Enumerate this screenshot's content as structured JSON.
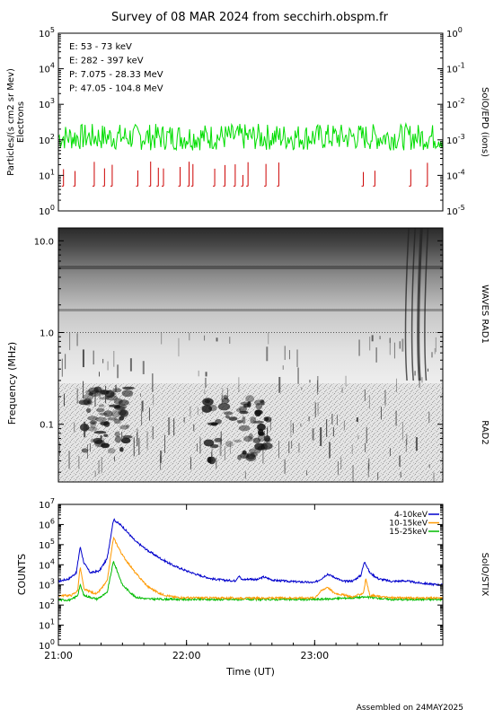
{
  "page": {
    "title": "Survey of 08 MAR 2024 from secchirh.obspm.fr",
    "footer": "Assembled on 24MAY2025"
  },
  "chart_data": [
    {
      "panel": "solo-epd",
      "type": "line",
      "ylabel": "Particles/(s cm2 sr Mev)",
      "ylabel2": "Electrons",
      "y2label": "SolO/EPD (ions)",
      "yscale": "log",
      "ylim": [
        1,
        100000
      ],
      "y2lim": [
        1e-05,
        1
      ],
      "yticks": [
        {
          "v": 1,
          "b": "10",
          "e": "0"
        },
        {
          "v": 10,
          "b": "10",
          "e": "1"
        },
        {
          "v": 100,
          "b": "10",
          "e": "2"
        },
        {
          "v": 1000,
          "b": "10",
          "e": "3"
        },
        {
          "v": 10000,
          "b": "10",
          "e": "4"
        },
        {
          "v": 100000,
          "b": "10",
          "e": "5"
        }
      ],
      "y2ticks": [
        {
          "v": 1e-05,
          "b": "10",
          "e": "-5"
        },
        {
          "v": 0.0001,
          "b": "10",
          "e": "-4"
        },
        {
          "v": 0.001,
          "b": "10",
          "e": "-3"
        },
        {
          "v": 0.01,
          "b": "10",
          "e": "-2"
        },
        {
          "v": 0.1,
          "b": "10",
          "e": "-1"
        },
        {
          "v": 1,
          "b": "10",
          "e": "0"
        }
      ],
      "legend": [
        {
          "label": "E: 53 - 73 keV",
          "color": "#00dd00"
        },
        {
          "label": "E: 282 - 397 keV",
          "color": "#cc0000"
        },
        {
          "label": "P: 7.075 - 28.33 MeV",
          "color": "#000000"
        },
        {
          "label": "P: 47.05 - 104.8 MeV",
          "color": "#0000cc"
        }
      ],
      "series": [
        {
          "name": "E: 53 - 73 keV",
          "color": "#00dd00",
          "typical_value": 120,
          "range": [
            40,
            300
          ]
        },
        {
          "name": "E: 282 - 397 keV",
          "color": "#cc0000",
          "baseline": 5,
          "spike_times_h": [
            21.04,
            21.13,
            21.28,
            21.36,
            21.42,
            21.62,
            21.72,
            21.78,
            21.82,
            21.95,
            22.02,
            22.05,
            22.22,
            22.3,
            22.38,
            22.44,
            22.48,
            22.62,
            22.72,
            23.38,
            23.47,
            23.75,
            23.88
          ]
        }
      ]
    },
    {
      "panel": "waves-rad",
      "type": "heatmap",
      "ylabel": "Frequency (MHz)",
      "y2label_top": "WAVES RAD1",
      "y2label_bottom": "RAD2",
      "yscale": "log",
      "ylim": [
        0.0235,
        13.8
      ],
      "yticks": [
        {
          "v": 0.1,
          "label": "0.1"
        },
        {
          "v": 1.0,
          "label": "1.0"
        },
        {
          "v": 10.0,
          "label": "10.0"
        }
      ],
      "features": [
        {
          "kind": "burst",
          "t_start_h": 21.2,
          "t_end_h": 21.55,
          "f_low_mhz": 0.05,
          "f_high_mhz": 0.25
        },
        {
          "kind": "burst",
          "t_start_h": 22.15,
          "t_end_h": 22.65,
          "f_low_mhz": 0.04,
          "f_high_mhz": 0.2
        },
        {
          "kind": "type-III",
          "t_start_h": 23.72,
          "t_end_h": 23.92,
          "f_low_mhz": 0.3,
          "f_high_mhz": 13.8
        }
      ]
    },
    {
      "panel": "solo-stix",
      "type": "line",
      "ylabel": "COUNTS",
      "y2label": "SolO/STIX",
      "yscale": "log",
      "ylim": [
        1,
        10000000
      ],
      "yticks": [
        {
          "v": 1,
          "b": "10",
          "e": "0"
        },
        {
          "v": 10,
          "b": "10",
          "e": "1"
        },
        {
          "v": 100,
          "b": "10",
          "e": "2"
        },
        {
          "v": 1000,
          "b": "10",
          "e": "3"
        },
        {
          "v": 10000,
          "b": "10",
          "e": "4"
        },
        {
          "v": 100000,
          "b": "10",
          "e": "5"
        },
        {
          "v": 1000000,
          "b": "10",
          "e": "6"
        },
        {
          "v": 10000000,
          "b": "10",
          "e": "7"
        }
      ],
      "xlabel": "Time (UT)",
      "xlim_h": [
        21.0,
        24.0
      ],
      "xticks": [
        {
          "v": 21.0,
          "label": "21:00"
        },
        {
          "v": 22.0,
          "label": "22:00"
        },
        {
          "v": 23.0,
          "label": "23:00"
        }
      ],
      "legend": [
        {
          "label": "4-10keV",
          "color": "#0000cc"
        },
        {
          "label": "10-15keV",
          "color": "#ff9900"
        },
        {
          "label": "15-25keV",
          "color": "#00bb00"
        }
      ],
      "series": [
        {
          "name": "4-10keV",
          "color": "#0000cc",
          "points": [
            [
              21.0,
              1500
            ],
            [
              21.08,
              2000
            ],
            [
              21.14,
              4000
            ],
            [
              21.17,
              80000
            ],
            [
              21.2,
              12000
            ],
            [
              21.25,
              4000
            ],
            [
              21.32,
              5000
            ],
            [
              21.38,
              20000
            ],
            [
              21.43,
              1800000
            ],
            [
              21.5,
              800000
            ],
            [
              21.6,
              150000
            ],
            [
              21.7,
              50000
            ],
            [
              21.8,
              20000
            ],
            [
              21.9,
              9000
            ],
            [
              22.0,
              5000
            ],
            [
              22.1,
              3000
            ],
            [
              22.2,
              2000
            ],
            [
              22.3,
              1700
            ],
            [
              22.38,
              1600
            ],
            [
              22.41,
              3000
            ],
            [
              22.43,
              1800
            ],
            [
              22.5,
              2000
            ],
            [
              22.55,
              1800
            ],
            [
              22.6,
              2500
            ],
            [
              22.68,
              1700
            ],
            [
              22.8,
              1500
            ],
            [
              22.9,
              1400
            ],
            [
              23.0,
              1300
            ],
            [
              23.05,
              2000
            ],
            [
              23.1,
              3500
            ],
            [
              23.15,
              2500
            ],
            [
              23.22,
              1500
            ],
            [
              23.3,
              1600
            ],
            [
              23.36,
              3000
            ],
            [
              23.39,
              15000
            ],
            [
              23.43,
              4000
            ],
            [
              23.5,
              2000
            ],
            [
              23.6,
              1500
            ],
            [
              23.7,
              1600
            ],
            [
              23.8,
              1300
            ],
            [
              23.9,
              1100
            ],
            [
              24.0,
              1000
            ]
          ]
        },
        {
          "name": "10-15keV",
          "color": "#ff9900",
          "points": [
            [
              21.0,
              300
            ],
            [
              21.1,
              300
            ],
            [
              21.15,
              500
            ],
            [
              21.17,
              8000
            ],
            [
              21.2,
              600
            ],
            [
              21.3,
              350
            ],
            [
              21.38,
              1500
            ],
            [
              21.43,
              220000
            ],
            [
              21.5,
              30000
            ],
            [
              21.6,
              4000
            ],
            [
              21.7,
              800
            ],
            [
              21.8,
              350
            ],
            [
              21.9,
              250
            ],
            [
              22.0,
              230
            ],
            [
              22.5,
              220
            ],
            [
              23.0,
              230
            ],
            [
              23.05,
              500
            ],
            [
              23.1,
              800
            ],
            [
              23.15,
              400
            ],
            [
              23.3,
              250
            ],
            [
              23.38,
              400
            ],
            [
              23.4,
              2000
            ],
            [
              23.43,
              300
            ],
            [
              23.6,
              230
            ],
            [
              24.0,
              220
            ]
          ]
        },
        {
          "name": "15-25keV",
          "color": "#00bb00",
          "points": [
            [
              21.0,
              180
            ],
            [
              21.1,
              180
            ],
            [
              21.15,
              300
            ],
            [
              21.17,
              1000
            ],
            [
              21.2,
              300
            ],
            [
              21.3,
              200
            ],
            [
              21.38,
              400
            ],
            [
              21.43,
              15000
            ],
            [
              21.5,
              1000
            ],
            [
              21.6,
              250
            ],
            [
              21.7,
              200
            ],
            [
              22.0,
              190
            ],
            [
              22.5,
              190
            ],
            [
              23.0,
              190
            ],
            [
              23.1,
              200
            ],
            [
              23.4,
              250
            ],
            [
              23.6,
              190
            ],
            [
              24.0,
              190
            ]
          ]
        }
      ]
    }
  ]
}
